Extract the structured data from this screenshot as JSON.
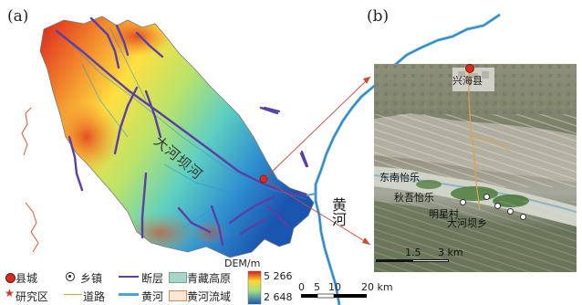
{
  "panels": {
    "a_label": "(a)",
    "b_label": "(b)"
  },
  "map_a": {
    "river_label": "大河坝河",
    "dem_title": "DEM/m",
    "dem_max": "5 266",
    "dem_min": "2 648"
  },
  "map_b": {
    "yellow_river_label": "黄河",
    "place_county": "兴海县",
    "place_1": "东南怡乐",
    "place_2": "秋吾怡乐",
    "place_3": "明星村",
    "place_4": "大河坝乡",
    "scale_1": "1.5",
    "scale_2": "3 km"
  },
  "legend": {
    "county": "县城",
    "town": "乡镇",
    "fault": "断层",
    "plateau": "青藏高原",
    "study_area": "研究区",
    "road": "道路",
    "yellow_river": "黄河",
    "basin": "黄河流域"
  },
  "scalebar": {
    "t0": "0",
    "t1": "5",
    "t2": "10",
    "t3": "20 km"
  },
  "colors": {
    "dem_high": "#d7191c",
    "dem_mid": "#ffff40",
    "dem_low": "#2c7bb6",
    "fault": "#5b3fa6",
    "river": "#4aa3d9",
    "road": "#e0a04a",
    "county": "#d62d20",
    "plateau": "#a8d5c7",
    "basin_edge": "#e88a4d"
  }
}
